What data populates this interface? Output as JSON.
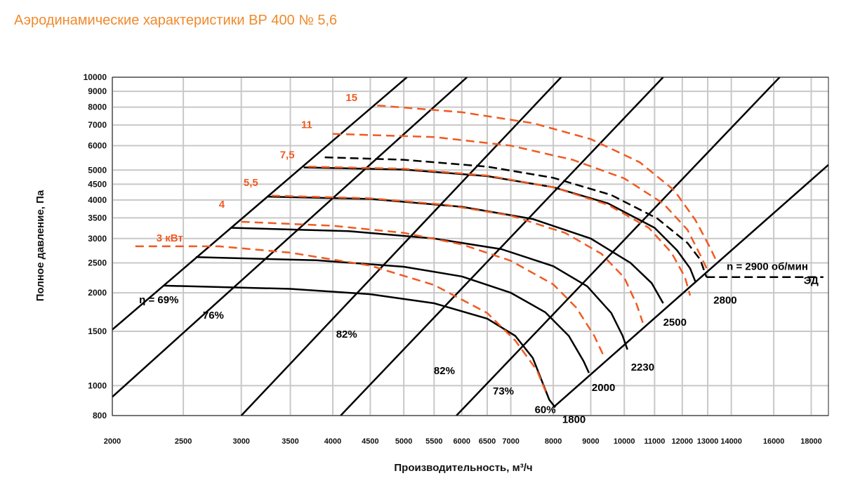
{
  "title": "Аэродинамические характеристики ВР 400 № 5,6",
  "colors": {
    "title": "#f08a2c",
    "power": "#f05a22",
    "curve": "#000000",
    "grid": "#c8c8c8"
  },
  "chart_data": {
    "type": "line",
    "title": "Аэродинамические характеристики ВР 400 № 5,6",
    "xlabel": "Производительность, м³/ч",
    "ylabel": "Полное давление, Па",
    "x_scale": "log",
    "y_scale": "log",
    "xlim": [
      2000,
      19000
    ],
    "ylim": [
      800,
      10000
    ],
    "grid": true,
    "x_ticks": [
      {
        "v": 2000,
        "t": "2000"
      },
      {
        "v": 2500,
        "t": "2500"
      },
      {
        "v": 3000,
        "t": "3000"
      },
      {
        "v": 3500,
        "t": "3500"
      },
      {
        "v": 4000,
        "t": "4000"
      },
      {
        "v": 4500,
        "t": "4500"
      },
      {
        "v": 5000,
        "t": "5000"
      },
      {
        "v": 5500,
        "t": "5500"
      },
      {
        "v": 6000,
        "t": "6000"
      },
      {
        "v": 6500,
        "t": "6500"
      },
      {
        "v": 7000,
        "t": "7000"
      },
      {
        "v": 8000,
        "t": "8000"
      },
      {
        "v": 9000,
        "t": "9000"
      },
      {
        "v": 10000,
        "t": "10000"
      },
      {
        "v": 11000,
        "t": "11000"
      },
      {
        "v": 12000,
        "t": "12000"
      },
      {
        "v": 13000,
        "t": "13000"
      },
      {
        "v": 14000,
        "t": "14000"
      },
      {
        "v": 16000,
        "t": "16000"
      },
      {
        "v": 18000,
        "t": "18000"
      }
    ],
    "y_ticks": [
      {
        "v": 800,
        "t": "800"
      },
      {
        "v": 1000,
        "t": "1000"
      },
      {
        "v": 1500,
        "t": "1500"
      },
      {
        "v": 2000,
        "t": "2000"
      },
      {
        "v": 2500,
        "t": "2500"
      },
      {
        "v": 3000,
        "t": "3000"
      },
      {
        "v": 3500,
        "t": "3500"
      },
      {
        "v": 4000,
        "t": "4000"
      },
      {
        "v": 4500,
        "t": "4500"
      },
      {
        "v": 5000,
        "t": "5000"
      },
      {
        "v": 6000,
        "t": "6000"
      },
      {
        "v": 7000,
        "t": "7000"
      },
      {
        "v": 8000,
        "t": "8000"
      },
      {
        "v": 9000,
        "t": "9000"
      },
      {
        "v": 10000,
        "t": "10000"
      }
    ],
    "speed_curves": [
      {
        "name": "1800",
        "points": [
          [
            2350,
            2110
          ],
          [
            3500,
            2060
          ],
          [
            4500,
            1980
          ],
          [
            5500,
            1850
          ],
          [
            6500,
            1650
          ],
          [
            7100,
            1450
          ],
          [
            7500,
            1230
          ],
          [
            7900,
            900
          ],
          [
            8050,
            850
          ]
        ]
      },
      {
        "name": "2000",
        "points": [
          [
            2600,
            2610
          ],
          [
            3800,
            2550
          ],
          [
            5000,
            2430
          ],
          [
            6000,
            2260
          ],
          [
            7000,
            2000
          ],
          [
            7800,
            1730
          ],
          [
            8400,
            1450
          ],
          [
            8800,
            1200
          ],
          [
            8950,
            1100
          ]
        ]
      },
      {
        "name": "2230",
        "points": [
          [
            2900,
            3250
          ],
          [
            4200,
            3170
          ],
          [
            5500,
            3000
          ],
          [
            6800,
            2770
          ],
          [
            8000,
            2440
          ],
          [
            8900,
            2100
          ],
          [
            9600,
            1720
          ],
          [
            9950,
            1450
          ],
          [
            10100,
            1310
          ]
        ]
      },
      {
        "name": "2500",
        "points": [
          [
            3250,
            4100
          ],
          [
            4500,
            4030
          ],
          [
            6000,
            3800
          ],
          [
            7500,
            3470
          ],
          [
            9000,
            3000
          ],
          [
            10200,
            2500
          ],
          [
            10900,
            2150
          ],
          [
            11300,
            1850
          ]
        ]
      },
      {
        "name": "2800",
        "points": [
          [
            3650,
            5100
          ],
          [
            5000,
            5020
          ],
          [
            6500,
            4780
          ],
          [
            8000,
            4400
          ],
          [
            9500,
            3900
          ],
          [
            11000,
            3250
          ],
          [
            11800,
            2750
          ],
          [
            12300,
            2400
          ],
          [
            12500,
            2180
          ]
        ]
      }
    ],
    "design_curve": {
      "name": "n = 2900 об/мин",
      "label": "ЭД",
      "points": [
        [
          3900,
          5500
        ],
        [
          5000,
          5400
        ],
        [
          6500,
          5130
        ],
        [
          8000,
          4720
        ],
        [
          9600,
          4150
        ],
        [
          11100,
          3480
        ],
        [
          12200,
          2900
        ],
        [
          12700,
          2560
        ],
        [
          12950,
          2250
        ]
      ],
      "hline": [
        [
          12950,
          2250
        ],
        [
          18700,
          2250
        ]
      ]
    },
    "power_curves": [
      {
        "name": "3 кВт",
        "points": [
          [
            2150,
            2830
          ],
          [
            2800,
            2830
          ],
          [
            3500,
            2700
          ],
          [
            4500,
            2450
          ],
          [
            5500,
            2120
          ],
          [
            6500,
            1720
          ],
          [
            7100,
            1400
          ],
          [
            7600,
            1120
          ],
          [
            7850,
            930
          ]
        ]
      },
      {
        "name": "4",
        "points": [
          [
            3000,
            3400
          ],
          [
            4000,
            3300
          ],
          [
            5000,
            3130
          ],
          [
            6000,
            2870
          ],
          [
            7000,
            2540
          ],
          [
            8000,
            2130
          ],
          [
            8600,
            1790
          ],
          [
            9100,
            1450
          ],
          [
            9400,
            1230
          ]
        ]
      },
      {
        "name": "5,5",
        "points": [
          [
            3300,
            4130
          ],
          [
            4500,
            4050
          ],
          [
            5700,
            3860
          ],
          [
            7000,
            3560
          ],
          [
            8300,
            3130
          ],
          [
            9300,
            2680
          ],
          [
            10000,
            2240
          ],
          [
            10400,
            1830
          ],
          [
            10600,
            1600
          ]
        ]
      },
      {
        "name": "7,5",
        "points": [
          [
            3700,
            5130
          ],
          [
            5000,
            5050
          ],
          [
            6500,
            4800
          ],
          [
            8000,
            4400
          ],
          [
            9500,
            3860
          ],
          [
            10800,
            3250
          ],
          [
            11600,
            2700
          ],
          [
            12100,
            2250
          ],
          [
            12300,
            1960
          ]
        ]
      },
      {
        "name": "11",
        "points": [
          [
            4000,
            6550
          ],
          [
            5500,
            6400
          ],
          [
            7000,
            6000
          ],
          [
            8500,
            5400
          ],
          [
            10000,
            4700
          ],
          [
            11300,
            3900
          ],
          [
            12200,
            3200
          ],
          [
            12750,
            2600
          ],
          [
            13000,
            2360
          ]
        ]
      },
      {
        "name": "15",
        "points": [
          [
            4600,
            8100
          ],
          [
            6000,
            7700
          ],
          [
            7500,
            7100
          ],
          [
            9000,
            6300
          ],
          [
            10500,
            5300
          ],
          [
            11700,
            4300
          ],
          [
            12500,
            3450
          ],
          [
            13100,
            2800
          ],
          [
            13400,
            2500
          ]
        ]
      }
    ],
    "efficiency_lines": [
      {
        "name": "η = 69%",
        "from": [
          2000,
          1520
        ],
        "to": [
          5050,
          10000
        ]
      },
      {
        "name": "76%",
        "from": [
          2000,
          920
        ],
        "to": [
          6100,
          10000
        ]
      },
      {
        "name": "82%",
        "from": [
          3000,
          800
        ],
        "to": [
          8200,
          10000
        ]
      },
      {
        "name": "82%",
        "from": [
          4100,
          800
        ],
        "to": [
          11300,
          10000
        ]
      },
      {
        "name": "73%",
        "from": [
          5900,
          800
        ],
        "to": [
          16300,
          10000
        ]
      },
      {
        "name": "60%",
        "from": [
          8000,
          850
        ],
        "to": [
          19000,
          5200
        ]
      }
    ],
    "annotations": {
      "power_labels": [
        "3 кВт",
        "4",
        "5,5",
        "7,5",
        "11",
        "15"
      ],
      "speed_labels": [
        "1800",
        "2000",
        "2230",
        "2500",
        "2800"
      ],
      "efficiency_labels": [
        "η = 69%",
        "76%",
        "82%",
        "82%",
        "73%",
        "60%"
      ],
      "design_speed": "n = 2900 об/мин",
      "motor": "ЭД"
    }
  }
}
